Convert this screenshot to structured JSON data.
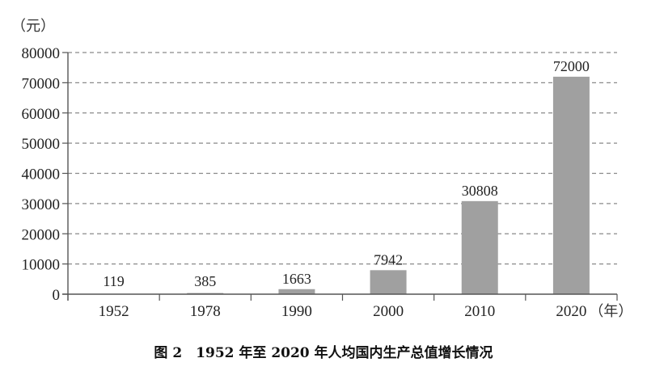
{
  "chart_data": {
    "type": "bar",
    "title": "图 2　1952 年至 2020 年人均国内生产总值增长情况",
    "ylabel": "（元）",
    "xlabel": "（年）",
    "categories": [
      "1952",
      "1978",
      "1990",
      "2000",
      "2010",
      "2020"
    ],
    "values": [
      119,
      385,
      1663,
      7942,
      30808,
      72000
    ],
    "data_labels": [
      "119",
      "385",
      "1663",
      "7942",
      "30808",
      "72000"
    ],
    "ylim": [
      0,
      80000
    ],
    "yticks": [
      "0",
      "10000",
      "20000",
      "30000",
      "40000",
      "50000",
      "60000",
      "70000",
      "80000"
    ],
    "grid": "horizontal dashed",
    "bar_color": "#a0a0a0"
  }
}
